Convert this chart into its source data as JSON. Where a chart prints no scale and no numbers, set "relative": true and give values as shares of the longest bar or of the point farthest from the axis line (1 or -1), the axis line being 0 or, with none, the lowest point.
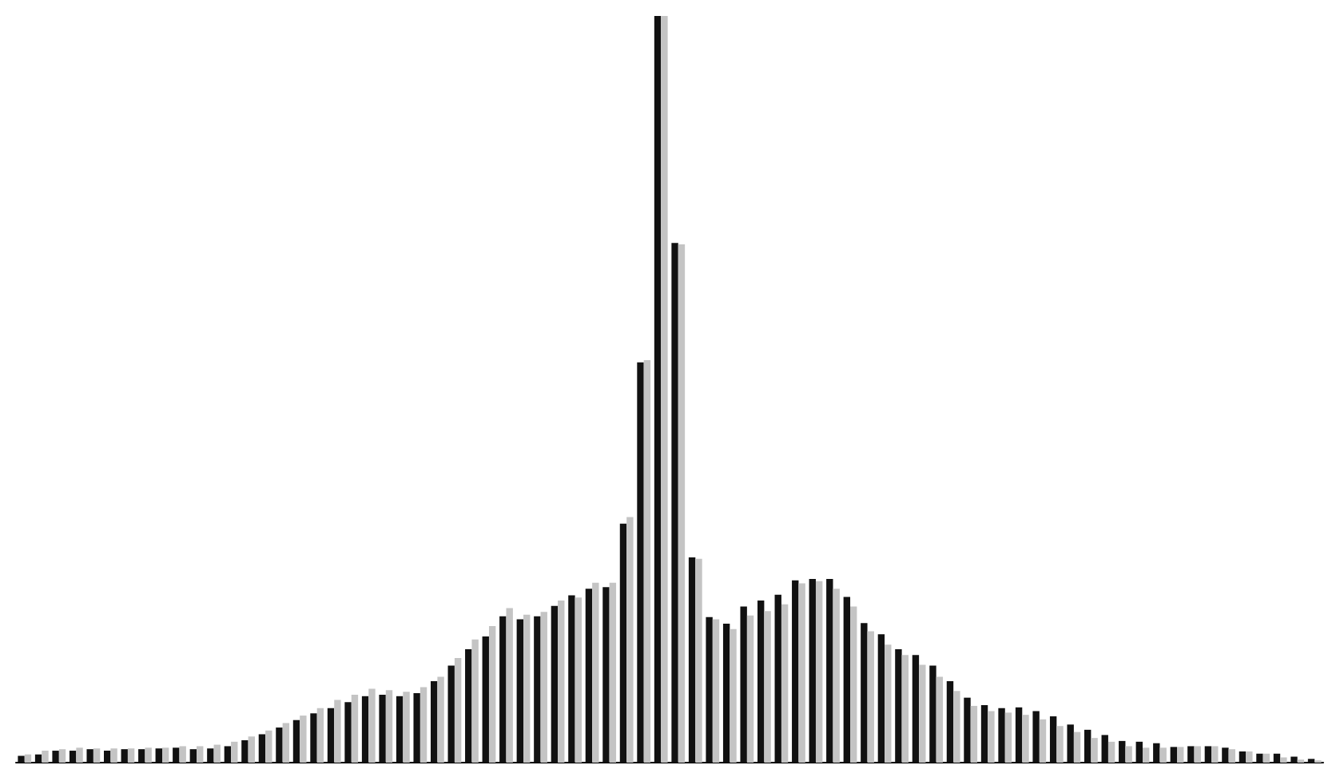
{
  "chart_data": {
    "type": "bar",
    "relative": true,
    "categories": [
      null,
      null,
      null,
      null,
      null,
      null,
      null,
      null,
      null,
      null,
      null,
      null,
      null,
      null,
      null,
      null,
      null,
      null,
      null,
      null,
      null,
      null,
      null,
      null,
      null,
      null,
      null,
      null,
      null,
      null,
      null,
      null,
      null,
      null,
      null,
      null,
      null,
      null,
      null,
      null,
      null,
      null,
      null,
      null,
      null,
      null,
      null,
      null,
      null,
      null,
      null,
      null,
      null,
      null,
      null,
      null,
      null,
      null,
      null,
      null,
      null,
      null,
      null,
      null,
      null,
      null,
      null,
      null,
      null,
      null,
      null,
      null,
      null,
      null,
      null,
      null
    ],
    "series": [
      {
        "color": "#111111",
        "values": [
          0.009,
          0.011,
          0.016,
          0.016,
          0.018,
          0.016,
          0.018,
          0.018,
          0.019,
          0.02,
          0.018,
          0.019,
          0.022,
          0.03,
          0.038,
          0.047,
          0.057,
          0.066,
          0.073,
          0.081,
          0.089,
          0.091,
          0.089,
          0.093,
          0.109,
          0.13,
          0.152,
          0.169,
          0.196,
          0.192,
          0.196,
          0.21,
          0.224,
          0.233,
          0.235,
          0.32,
          0.536,
          1,
          0.696,
          0.275,
          0.195,
          0.186,
          0.209,
          0.217,
          0.225,
          0.244,
          0.246,
          0.246,
          0.222,
          0.187,
          0.172,
          0.152,
          0.144,
          0.13,
          0.109,
          0.087,
          0.077,
          0.073,
          0.074,
          0.069,
          0.062,
          0.051,
          0.044,
          0.037,
          0.029,
          0.028,
          0.026,
          0.021,
          0.022,
          0.022,
          0.02,
          0.015,
          0.012,
          0.012,
          0.008,
          0.005
        ]
      },
      {
        "color": "#c4c4c4",
        "values": [
          0.011,
          0.016,
          0.018,
          0.02,
          0.019,
          0.019,
          0.019,
          0.02,
          0.02,
          0.022,
          0.022,
          0.024,
          0.028,
          0.035,
          0.043,
          0.053,
          0.063,
          0.073,
          0.084,
          0.091,
          0.099,
          0.097,
          0.095,
          0.101,
          0.115,
          0.14,
          0.165,
          0.183,
          0.207,
          0.198,
          0.202,
          0.217,
          0.221,
          0.241,
          0.241,
          0.329,
          0.539,
          1,
          0.694,
          0.273,
          0.192,
          0.179,
          0.197,
          0.203,
          0.212,
          0.24,
          0.243,
          0.233,
          0.209,
          0.176,
          0.158,
          0.144,
          0.131,
          0.115,
          0.096,
          0.076,
          0.069,
          0.067,
          0.064,
          0.058,
          0.049,
          0.041,
          0.033,
          0.028,
          0.022,
          0.02,
          0.02,
          0.021,
          0.022,
          0.022,
          0.018,
          0.015,
          0.012,
          0.007,
          0.004,
          0.003
        ]
      }
    ]
  }
}
